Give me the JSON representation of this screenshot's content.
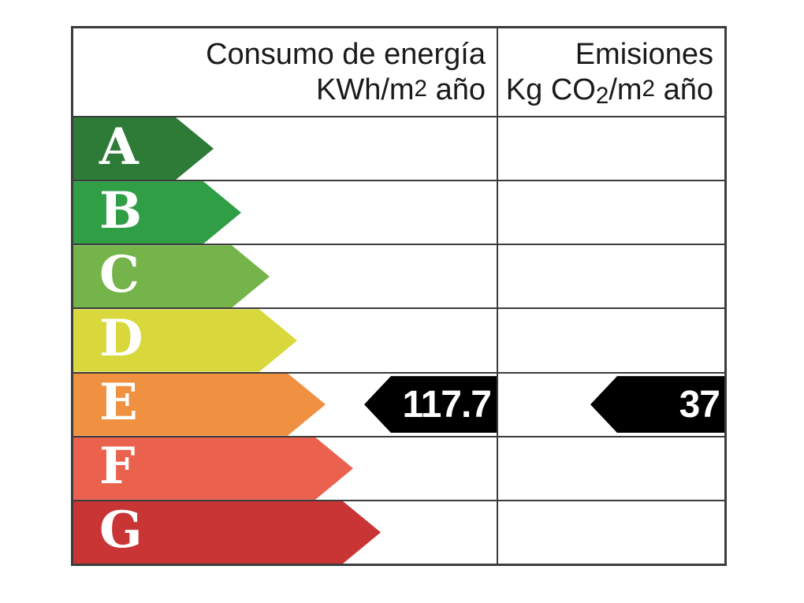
{
  "header": {
    "consumption": {
      "line1": "Consumo de energía",
      "line2_prefix": "KWh/m",
      "line2_sup": "2",
      "line2_suffix": " año"
    },
    "emissions": {
      "line1": "Emisiones",
      "line2_prefix": "Kg CO",
      "line2_sub": "2",
      "line2_mid": "/m",
      "line2_sup": "2",
      "line2_suffix": " año"
    }
  },
  "scale": {
    "rows": [
      {
        "letter": "A",
        "color": "#2e7b38",
        "arrow_width": 178
      },
      {
        "letter": "B",
        "color": "#2f9e45",
        "arrow_width": 213
      },
      {
        "letter": "C",
        "color": "#74b44a",
        "arrow_width": 249
      },
      {
        "letter": "D",
        "color": "#d8d83c",
        "arrow_width": 284
      },
      {
        "letter": "E",
        "color": "#f09142",
        "arrow_width": 320
      },
      {
        "letter": "F",
        "color": "#ea614d",
        "arrow_width": 355
      },
      {
        "letter": "G",
        "color": "#c93434",
        "arrow_width": 390
      }
    ]
  },
  "ratings": {
    "consumption": {
      "value": "117.7",
      "band": "E"
    },
    "emissions": {
      "value": "37",
      "band": "E"
    }
  },
  "colors": {
    "indicator_arrow": "#000000",
    "indicator_text": "#ffffff",
    "grid_line": "#3c3c3c",
    "header_text": "#1a1a1a",
    "background": "#ffffff"
  },
  "chart_data": {
    "type": "table",
    "title": "Etiqueta de eficiencia energética",
    "columns": [
      "Consumo de energía KWh/m2 año",
      "Emisiones Kg CO2/m2 año"
    ],
    "bands": [
      "A",
      "B",
      "C",
      "D",
      "E",
      "F",
      "G"
    ],
    "band_colors": [
      "#2e7b38",
      "#2f9e45",
      "#74b44a",
      "#d8d83c",
      "#f09142",
      "#ea614d",
      "#c93434"
    ],
    "values": [
      {
        "metric": "consumo_energia",
        "value": 117.7,
        "unit": "KWh/m2 año",
        "band": "E"
      },
      {
        "metric": "emisiones",
        "value": 37,
        "unit": "Kg CO2/m2 año",
        "band": "E"
      }
    ],
    "legend_position": "none",
    "grid": true
  }
}
